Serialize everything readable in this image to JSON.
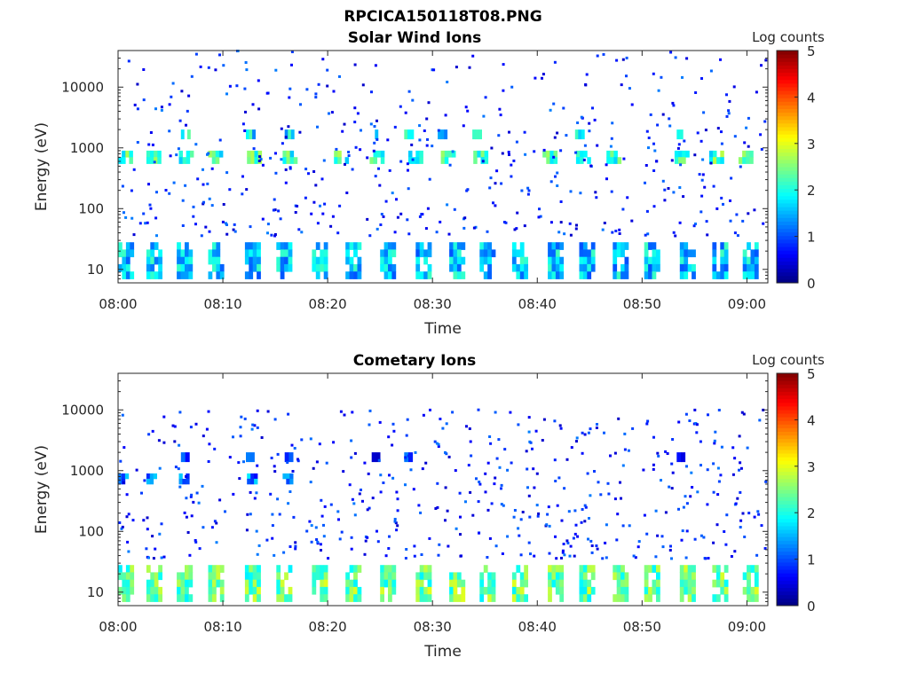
{
  "figure": {
    "suptitle": "RPCICA150118T08.PNG"
  },
  "chart_data": [
    {
      "type": "heatmap",
      "title": "Solar Wind Ions",
      "xlabel": "Time",
      "ylabel": "Energy (eV)",
      "yscale": "log",
      "ylim": [
        6,
        40000
      ],
      "xlim": [
        "08:00",
        "09:02"
      ],
      "x_ticks": [
        "08:00",
        "08:10",
        "08:20",
        "08:30",
        "08:40",
        "08:50",
        "09:00"
      ],
      "y_ticks": [
        "10",
        "100",
        "1000",
        "10000"
      ],
      "colorbar": {
        "label": "Log counts",
        "range": [
          0,
          5
        ],
        "ticks": [
          "0",
          "1",
          "2",
          "3",
          "4",
          "5"
        ],
        "colormap": "jet"
      },
      "bands": [
        {
          "energy": [
            7,
            28
          ],
          "starts_min": [
            0.0,
            2.7,
            5.6,
            8.6,
            12.1,
            15.1,
            18.5,
            21.7,
            25.0,
            28.4,
            31.6,
            34.5,
            37.6,
            41.0,
            44.0,
            47.2,
            50.2,
            53.6,
            56.7,
            59.6
          ],
          "width_min": 1.5,
          "level": 1.6
        },
        {
          "energy": [
            550,
            900
          ],
          "starts_min": [
            0.0,
            2.7,
            5.8,
            8.6,
            12.3,
            15.7,
            20.6,
            24.0,
            27.7,
            30.8,
            33.9,
            40.5,
            43.7,
            46.6,
            53.1,
            56.4,
            59.2
          ],
          "width_min": 1.4,
          "level": 2.2
        },
        {
          "energy": [
            1400,
            2000
          ],
          "starts_min": [
            6.0,
            12.2,
            15.9,
            24.2,
            27.3,
            30.5,
            33.8,
            43.6,
            53.3
          ],
          "width_min": 0.9,
          "level": 1.8
        }
      ],
      "scatter": {
        "energy_range": [
          35,
          40000
        ],
        "count": 480,
        "seed": 7,
        "level": 0.35
      }
    },
    {
      "type": "heatmap",
      "title": "Cometary Ions",
      "xlabel": "Time",
      "ylabel": "Energy (eV)",
      "yscale": "log",
      "ylim": [
        6,
        40000
      ],
      "xlim": [
        "08:00",
        "09:02"
      ],
      "x_ticks": [
        "08:00",
        "08:10",
        "08:20",
        "08:30",
        "08:40",
        "08:50",
        "09:00"
      ],
      "y_ticks": [
        "10",
        "100",
        "1000",
        "10000"
      ],
      "colorbar": {
        "label": "Log counts",
        "range": [
          0,
          5
        ],
        "ticks": [
          "0",
          "1",
          "2",
          "3",
          "4",
          "5"
        ],
        "colormap": "jet"
      },
      "bands": [
        {
          "energy": [
            7,
            28
          ],
          "starts_min": [
            0.0,
            2.7,
            5.6,
            8.6,
            12.1,
            15.1,
            18.5,
            21.7,
            25.0,
            28.4,
            31.6,
            34.5,
            37.6,
            41.0,
            44.0,
            47.2,
            50.2,
            53.6,
            56.7,
            59.6
          ],
          "width_min": 1.5,
          "level": 2.4
        },
        {
          "energy": [
            600,
            900
          ],
          "starts_min": [
            0.0,
            2.7,
            5.8,
            12.3,
            15.7
          ],
          "width_min": 1.0,
          "level": 1.2
        },
        {
          "energy": [
            1400,
            2000
          ],
          "starts_min": [
            6.0,
            12.2,
            15.9,
            24.2,
            27.3,
            30.5,
            53.3
          ],
          "width_min": 0.8,
          "level": 0.8
        }
      ],
      "scatter": {
        "energy_range": [
          35,
          10000
        ],
        "count": 520,
        "seed": 19,
        "level": 0.35
      }
    }
  ]
}
